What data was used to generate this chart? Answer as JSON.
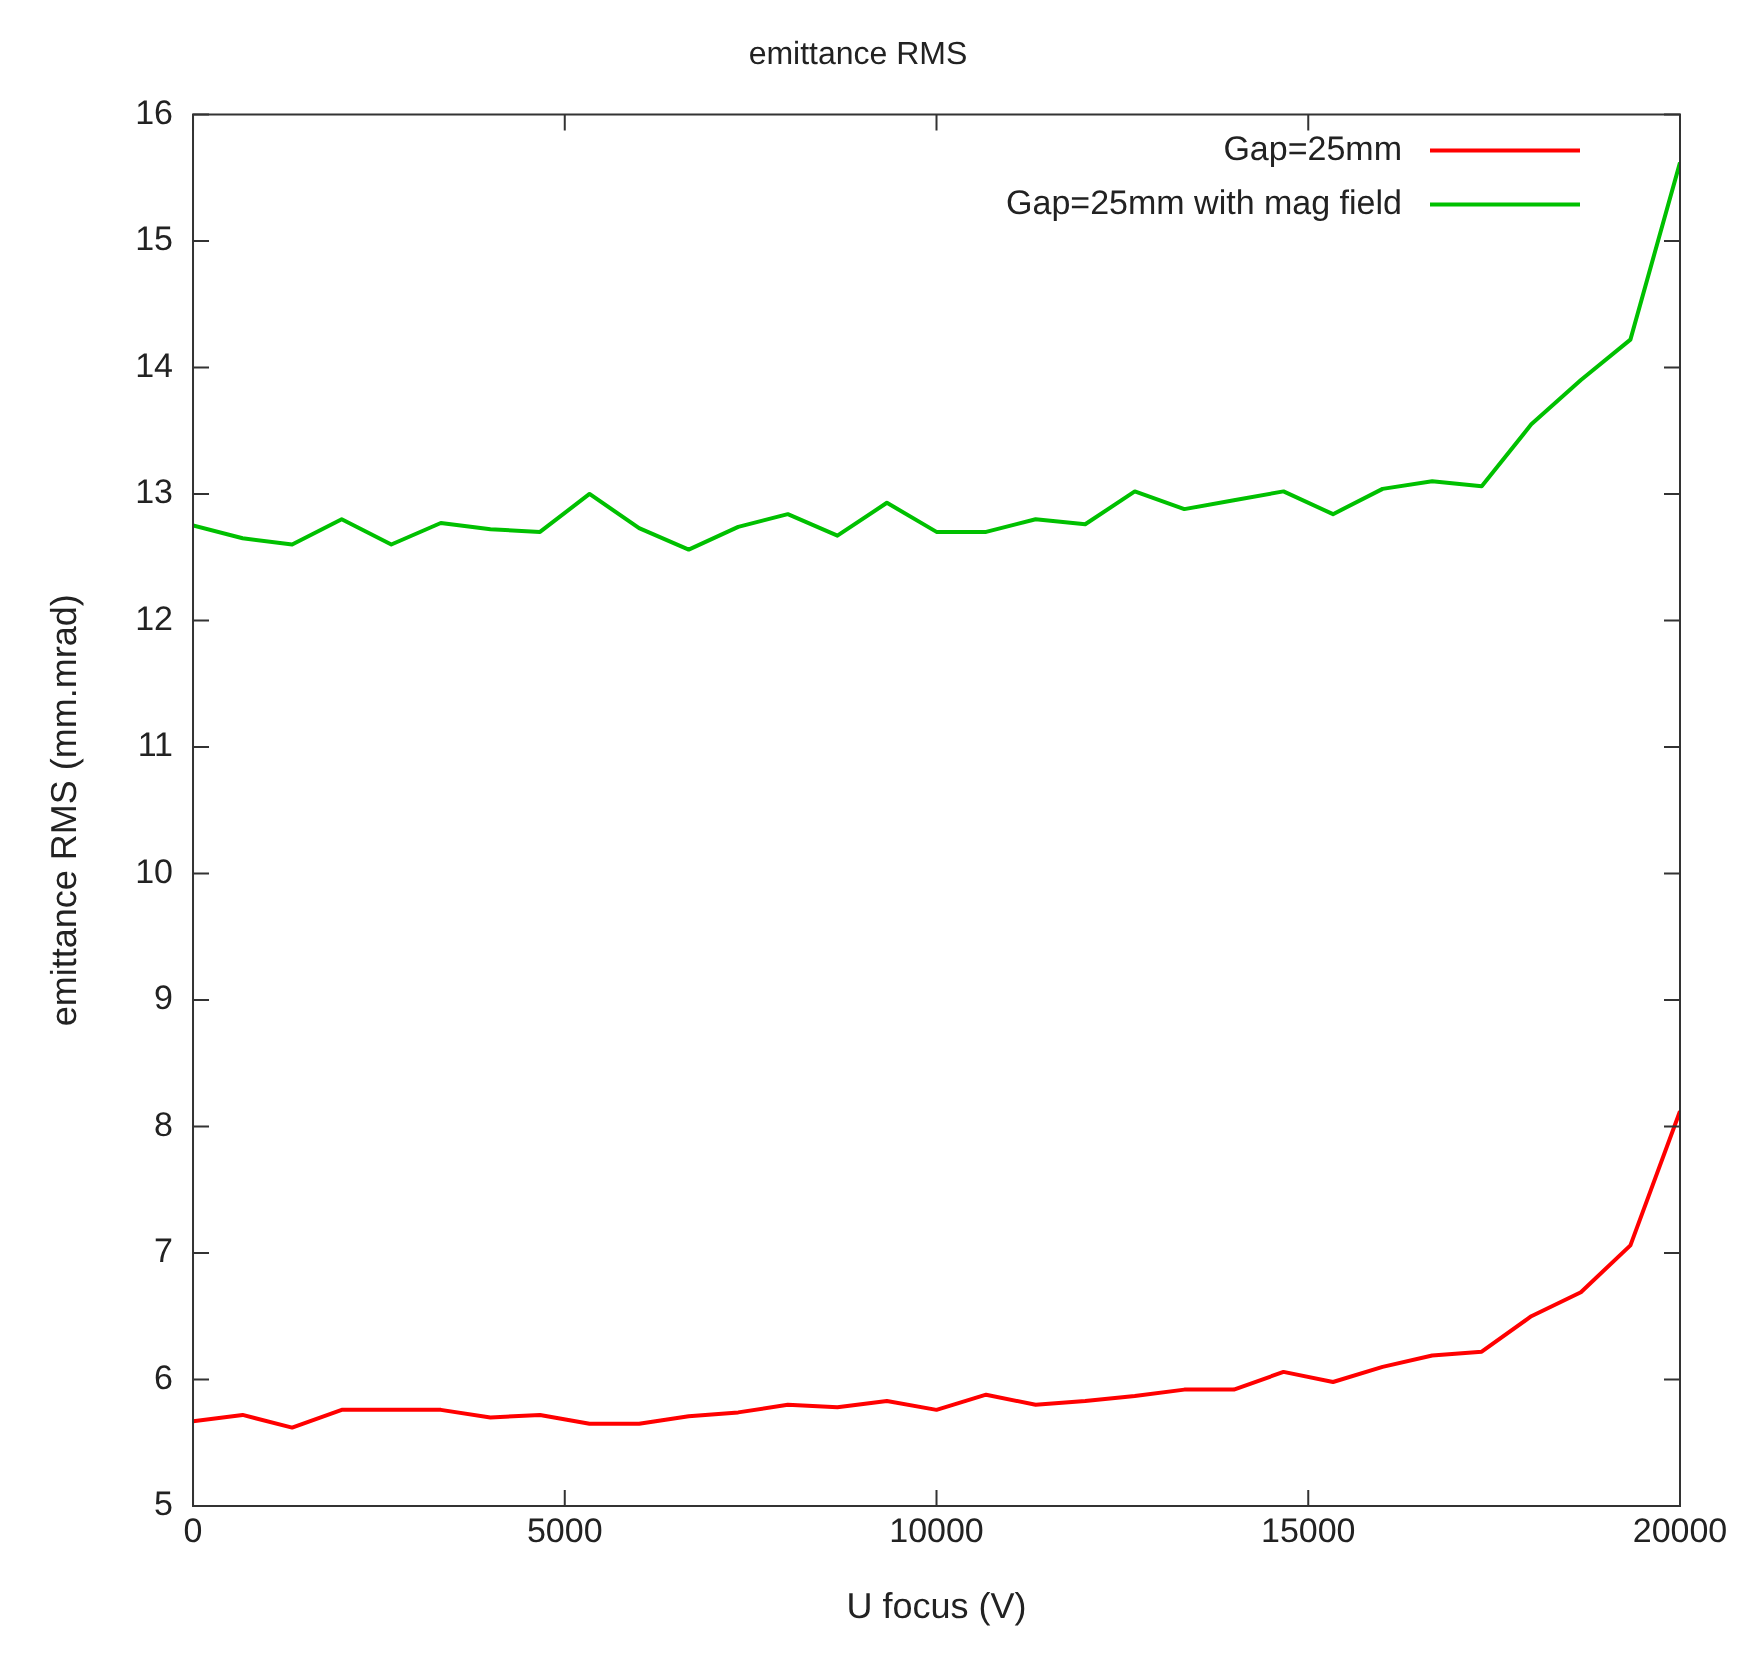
{
  "chart_data": {
    "type": "line",
    "title": "emittance RMS",
    "xlabel": "U focus (V)",
    "ylabel": "emittance RMS (mm.mrad)",
    "x": [
      0,
      667,
      1333,
      2000,
      2667,
      3333,
      4000,
      4667,
      5333,
      6000,
      6667,
      7333,
      8000,
      8667,
      9333,
      10000,
      10667,
      11333,
      12000,
      12667,
      13333,
      14000,
      14667,
      15333,
      16000,
      16667,
      17333,
      18000,
      18667,
      19333,
      20000
    ],
    "series": [
      {
        "name": "Gap=25mm",
        "color": "#ff0000",
        "values": [
          5.67,
          5.72,
          5.62,
          5.76,
          5.76,
          5.76,
          5.7,
          5.72,
          5.65,
          5.65,
          5.71,
          5.74,
          5.8,
          5.78,
          5.83,
          5.76,
          5.88,
          5.8,
          5.83,
          5.87,
          5.92,
          5.92,
          6.06,
          5.98,
          6.1,
          6.19,
          6.22,
          6.5,
          6.69,
          7.06,
          8.12
        ]
      },
      {
        "name": "Gap=25mm with mag field",
        "color": "#00c000",
        "values": [
          12.75,
          12.65,
          12.6,
          12.8,
          12.6,
          12.77,
          12.72,
          12.7,
          13.0,
          12.73,
          12.56,
          12.74,
          12.84,
          12.67,
          12.93,
          12.7,
          12.7,
          12.8,
          12.76,
          13.02,
          12.88,
          12.95,
          13.02,
          12.84,
          13.04,
          13.1,
          13.06,
          13.55,
          13.9,
          14.22,
          15.62
        ]
      }
    ],
    "xlim": [
      0,
      20000
    ],
    "xticks": [
      0,
      5000,
      10000,
      15000,
      20000
    ],
    "ylim": [
      5,
      16
    ],
    "yticks": [
      5,
      6,
      7,
      8,
      9,
      10,
      11,
      12,
      13,
      14,
      15,
      16
    ],
    "grid": false,
    "legend": "top right",
    "marker": "none",
    "line_style": "solid"
  }
}
